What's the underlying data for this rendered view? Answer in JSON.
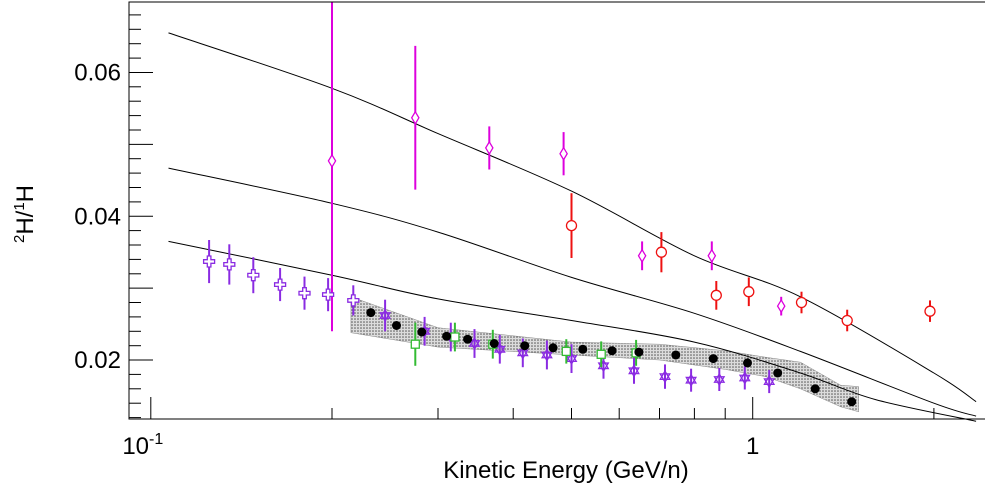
{
  "chart_data": {
    "type": "scatter",
    "title": "",
    "xlabel": "Kinetic Energy (GeV/n)",
    "ylabel": {
      "pre_sup": "2",
      "a": "H/",
      "mid_sup": "1",
      "b": "H"
    },
    "x_scale": "log",
    "xlim": [
      0.092,
      2.45
    ],
    "ylim": [
      0.0118,
      0.0698
    ],
    "grid": false,
    "legend": "none",
    "x_tick_labels": [
      {
        "value": 0.1,
        "base": "10",
        "exp": "-1"
      },
      {
        "value": 1,
        "base": "1",
        "exp": ""
      }
    ],
    "y_tick_labels": [
      {
        "value": 0.02,
        "label": "0.02"
      },
      {
        "value": 0.04,
        "label": "0.04"
      },
      {
        "value": 0.06,
        "label": "0.06"
      }
    ],
    "curves": [
      {
        "color": "#000000",
        "x": [
          0.107,
          0.2,
          0.3,
          0.5,
          0.8,
          1.2,
          2.0,
          2.35
        ],
        "y": [
          0.0655,
          0.0578,
          0.0515,
          0.0435,
          0.0345,
          0.0288,
          0.0182,
          0.0142
        ]
      },
      {
        "color": "#000000",
        "x": [
          0.107,
          0.2,
          0.3,
          0.5,
          0.8,
          1.2,
          2.0,
          2.35
        ],
        "y": [
          0.0467,
          0.0418,
          0.0378,
          0.0315,
          0.0265,
          0.0212,
          0.014,
          0.0122
        ]
      },
      {
        "color": "#000000",
        "x": [
          0.107,
          0.2,
          0.3,
          0.5,
          0.8,
          1.2,
          1.6,
          2.35
        ],
        "y": [
          0.0365,
          0.0318,
          0.0285,
          0.0255,
          0.0225,
          0.0182,
          0.0145,
          0.0115
        ]
      }
    ],
    "band": {
      "color": "#777777",
      "x": [
        0.215,
        0.3,
        0.5,
        0.7,
        0.9,
        1.05,
        1.2,
        1.4,
        1.5
      ],
      "lo": [
        0.0238,
        0.0218,
        0.0207,
        0.02,
        0.0187,
        0.0177,
        0.016,
        0.0135,
        0.0128
      ],
      "hi": [
        0.0288,
        0.0245,
        0.0225,
        0.0222,
        0.0213,
        0.0204,
        0.0197,
        0.0165,
        0.0163
      ]
    },
    "series": [
      {
        "marker": "diamond-open",
        "color": "#dd00dd",
        "points": [
          {
            "x": 0.2,
            "y": 0.0477,
            "lo": 0.024,
            "hi": 0.0698
          },
          {
            "x": 0.275,
            "y": 0.0537,
            "lo": 0.0437,
            "hi": 0.0637
          },
          {
            "x": 0.365,
            "y": 0.0495,
            "lo": 0.0465,
            "hi": 0.0525
          },
          {
            "x": 0.485,
            "y": 0.0487,
            "lo": 0.0457,
            "hi": 0.0517
          },
          {
            "x": 0.655,
            "y": 0.0345,
            "lo": 0.0325,
            "hi": 0.0365
          },
          {
            "x": 0.855,
            "y": 0.0345,
            "lo": 0.0325,
            "hi": 0.0365
          },
          {
            "x": 1.115,
            "y": 0.0275,
            "lo": 0.0262,
            "hi": 0.0288
          }
        ]
      },
      {
        "marker": "circle-open",
        "color": "#ee1111",
        "points": [
          {
            "x": 0.5,
            "y": 0.0387,
            "lo": 0.0342,
            "hi": 0.0432
          },
          {
            "x": 0.705,
            "y": 0.035,
            "lo": 0.0322,
            "hi": 0.0378
          },
          {
            "x": 0.87,
            "y": 0.029,
            "lo": 0.027,
            "hi": 0.031
          },
          {
            "x": 0.985,
            "y": 0.0295,
            "lo": 0.0275,
            "hi": 0.0315
          },
          {
            "x": 1.205,
            "y": 0.028,
            "lo": 0.0265,
            "hi": 0.0295
          },
          {
            "x": 1.435,
            "y": 0.0255,
            "lo": 0.024,
            "hi": 0.027
          },
          {
            "x": 1.97,
            "y": 0.0268,
            "lo": 0.0253,
            "hi": 0.0283
          }
        ]
      },
      {
        "marker": "cross-open",
        "color": "#8a2be2",
        "points": [
          {
            "x": 0.125,
            "y": 0.0337,
            "lo": 0.0307,
            "hi": 0.0367
          },
          {
            "x": 0.135,
            "y": 0.0333,
            "lo": 0.0305,
            "hi": 0.0361
          },
          {
            "x": 0.148,
            "y": 0.0318,
            "lo": 0.0293,
            "hi": 0.0343
          },
          {
            "x": 0.164,
            "y": 0.0305,
            "lo": 0.0282,
            "hi": 0.0328
          },
          {
            "x": 0.18,
            "y": 0.0293,
            "lo": 0.027,
            "hi": 0.0316
          },
          {
            "x": 0.197,
            "y": 0.0291,
            "lo": 0.0268,
            "hi": 0.0314
          },
          {
            "x": 0.217,
            "y": 0.0283,
            "lo": 0.0262,
            "hi": 0.0304
          }
        ]
      },
      {
        "marker": "star-open",
        "color": "#8a2be2",
        "points": [
          {
            "x": 0.245,
            "y": 0.0262,
            "lo": 0.024,
            "hi": 0.0284
          },
          {
            "x": 0.285,
            "y": 0.024,
            "lo": 0.022,
            "hi": 0.026
          },
          {
            "x": 0.315,
            "y": 0.0232,
            "lo": 0.0212,
            "hi": 0.0252
          },
          {
            "x": 0.345,
            "y": 0.0223,
            "lo": 0.0203,
            "hi": 0.0243
          },
          {
            "x": 0.38,
            "y": 0.0215,
            "lo": 0.0195,
            "hi": 0.0235
          },
          {
            "x": 0.415,
            "y": 0.021,
            "lo": 0.019,
            "hi": 0.023
          },
          {
            "x": 0.455,
            "y": 0.0207,
            "lo": 0.0187,
            "hi": 0.0227
          },
          {
            "x": 0.5,
            "y": 0.0202,
            "lo": 0.0182,
            "hi": 0.0222
          },
          {
            "x": 0.565,
            "y": 0.0192,
            "lo": 0.0174,
            "hi": 0.021
          },
          {
            "x": 0.635,
            "y": 0.0185,
            "lo": 0.0167,
            "hi": 0.0203
          },
          {
            "x": 0.715,
            "y": 0.0177,
            "lo": 0.016,
            "hi": 0.0194
          },
          {
            "x": 0.79,
            "y": 0.0172,
            "lo": 0.0156,
            "hi": 0.0188
          },
          {
            "x": 0.88,
            "y": 0.0173,
            "lo": 0.0157,
            "hi": 0.0189
          },
          {
            "x": 0.97,
            "y": 0.0175,
            "lo": 0.0159,
            "hi": 0.0191
          },
          {
            "x": 1.065,
            "y": 0.017,
            "lo": 0.0154,
            "hi": 0.0186
          }
        ]
      },
      {
        "marker": "square-open",
        "color": "#33bb33",
        "points": [
          {
            "x": 0.275,
            "y": 0.0222,
            "lo": 0.0192,
            "hi": 0.0252
          },
          {
            "x": 0.32,
            "y": 0.0232,
            "lo": 0.0212,
            "hi": 0.0252
          },
          {
            "x": 0.37,
            "y": 0.0222,
            "lo": 0.0202,
            "hi": 0.0242
          },
          {
            "x": 0.49,
            "y": 0.0212,
            "lo": 0.0195,
            "hi": 0.0229
          },
          {
            "x": 0.56,
            "y": 0.0208,
            "lo": 0.019,
            "hi": 0.0226
          },
          {
            "x": 0.64,
            "y": 0.021,
            "lo": 0.0192,
            "hi": 0.0228
          }
        ]
      },
      {
        "marker": "circle-filled",
        "color": "#000000",
        "points": [
          {
            "x": 0.232,
            "y": 0.0266
          },
          {
            "x": 0.256,
            "y": 0.0248
          },
          {
            "x": 0.282,
            "y": 0.0239
          },
          {
            "x": 0.31,
            "y": 0.0233
          },
          {
            "x": 0.336,
            "y": 0.0229
          },
          {
            "x": 0.372,
            "y": 0.0223
          },
          {
            "x": 0.418,
            "y": 0.022
          },
          {
            "x": 0.466,
            "y": 0.0217
          },
          {
            "x": 0.522,
            "y": 0.0215
          },
          {
            "x": 0.584,
            "y": 0.0213
          },
          {
            "x": 0.647,
            "y": 0.0211
          },
          {
            "x": 0.745,
            "y": 0.0207
          },
          {
            "x": 0.86,
            "y": 0.0202
          },
          {
            "x": 0.98,
            "y": 0.0196
          },
          {
            "x": 1.1,
            "y": 0.0182
          },
          {
            "x": 1.27,
            "y": 0.016
          },
          {
            "x": 1.46,
            "y": 0.0142
          }
        ]
      }
    ]
  }
}
